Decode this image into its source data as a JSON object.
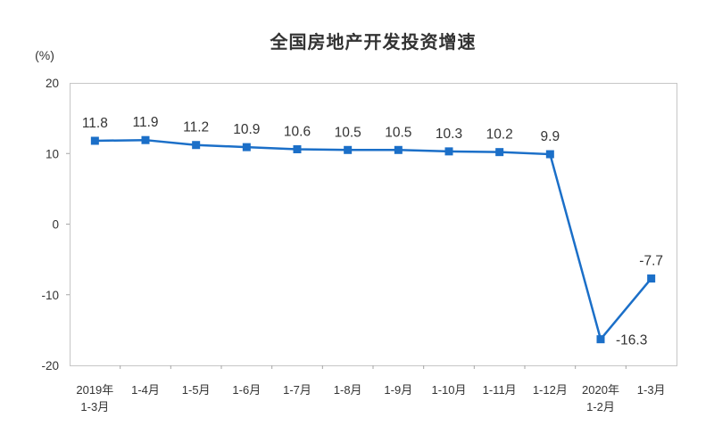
{
  "page": {
    "background": "#ffffff"
  },
  "chart_data": {
    "type": "line",
    "title": "全国房地产开发投资增速",
    "unit_label": "(%)",
    "categories": [
      [
        "2019年",
        "1-3月"
      ],
      [
        "1-4月"
      ],
      [
        "1-5月"
      ],
      [
        "1-6月"
      ],
      [
        "1-7月"
      ],
      [
        "1-8月"
      ],
      [
        "1-9月"
      ],
      [
        "1-10月"
      ],
      [
        "1-11月"
      ],
      [
        "1-12月"
      ],
      [
        "2020年",
        "1-2月"
      ],
      [
        "1-3月"
      ]
    ],
    "values": [
      11.8,
      11.9,
      11.2,
      10.9,
      10.6,
      10.5,
      10.5,
      10.3,
      10.2,
      9.9,
      -16.3,
      -7.7
    ],
    "labels": [
      "11.8",
      "11.9",
      "11.2",
      "10.9",
      "10.6",
      "10.5",
      "10.5",
      "10.3",
      "10.2",
      "9.9",
      "-16.3",
      "-7.7"
    ],
    "label_positions": [
      "above",
      "above",
      "above",
      "above",
      "above",
      "above",
      "above",
      "above",
      "above",
      "above",
      "right",
      "above"
    ],
    "y_ticks": [
      20,
      10,
      0,
      -10,
      -20
    ],
    "ylim": [
      -20,
      20
    ],
    "grid": false,
    "legend": "none",
    "marker": "square",
    "colors": {
      "line": "#1b6fc8",
      "text": "#333333",
      "border": "#c6c6c6",
      "tick": "#a6a6a6"
    }
  }
}
